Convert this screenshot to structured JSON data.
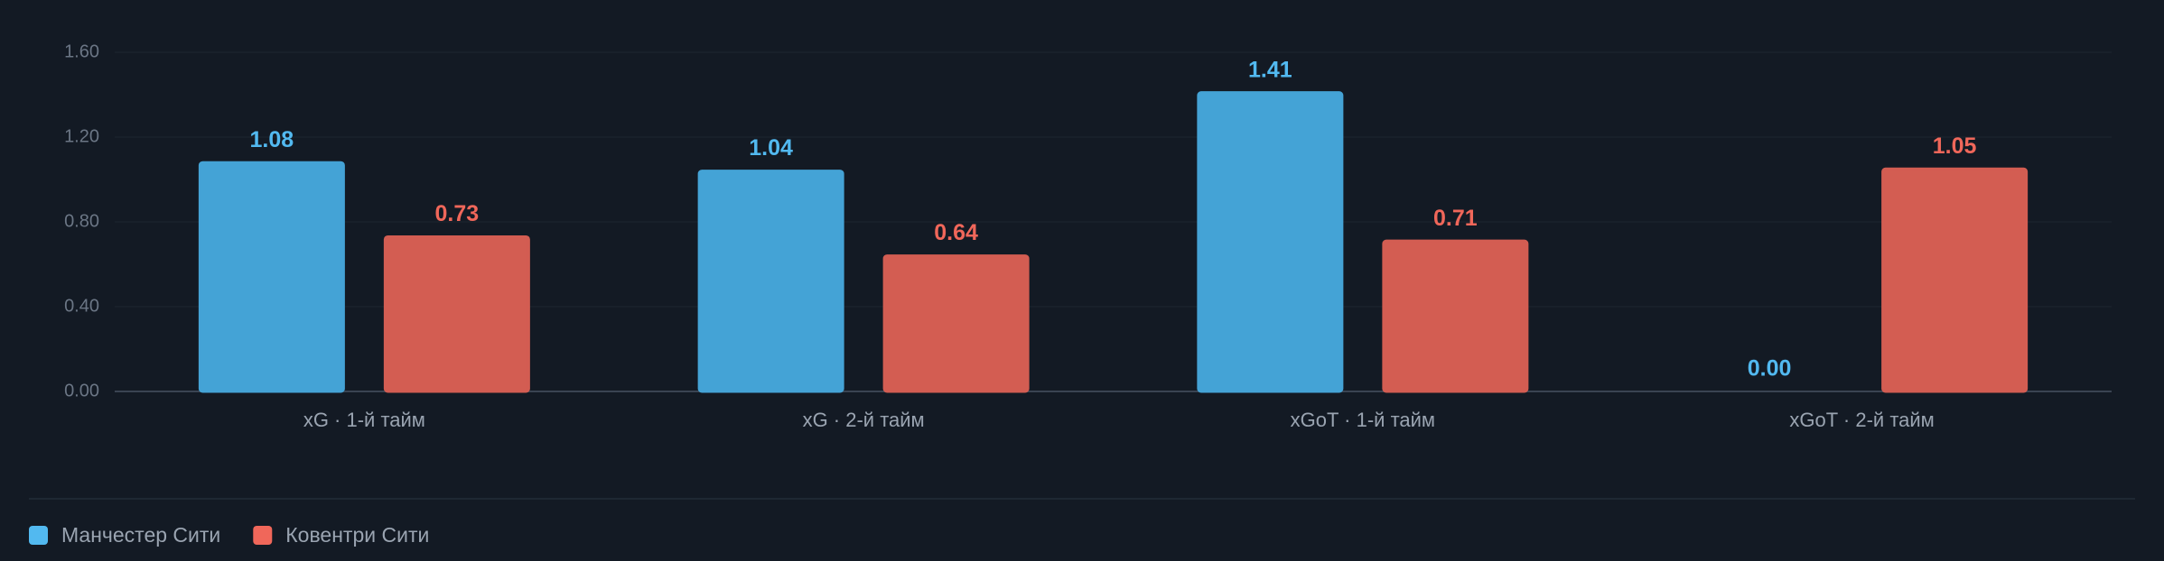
{
  "chart_data": {
    "type": "bar",
    "categories": [
      "xG · 1-й тайм",
      "xG · 2-й тайм",
      "xGoT · 1-й тайм",
      "xGoT · 2-й тайм"
    ],
    "series": [
      {
        "name": "Манчестер Сити",
        "color": "#44a3d6",
        "label_color": "#52b9f0",
        "values": [
          1.08,
          1.04,
          1.41,
          0
        ],
        "value_labels": [
          "1.08",
          "1.04",
          "1.41",
          "0.00"
        ]
      },
      {
        "name": "Ковентри Сити",
        "color": "#d35d52",
        "label_color": "#f0675a",
        "values": [
          0.73,
          0.64,
          0.71,
          1.05
        ],
        "value_labels": [
          "0.73",
          "0.64",
          "0.71",
          "1.05"
        ]
      }
    ],
    "ylim": [
      0,
      1.6
    ],
    "yticks": [
      {
        "value": 0,
        "label": "0.00"
      },
      {
        "value": 0.4,
        "label": "0.40"
      },
      {
        "value": 0.8,
        "label": "0.80"
      },
      {
        "value": 1.2,
        "label": "1.20"
      },
      {
        "value": 1.6,
        "label": "1.60"
      }
    ],
    "grid": true
  }
}
